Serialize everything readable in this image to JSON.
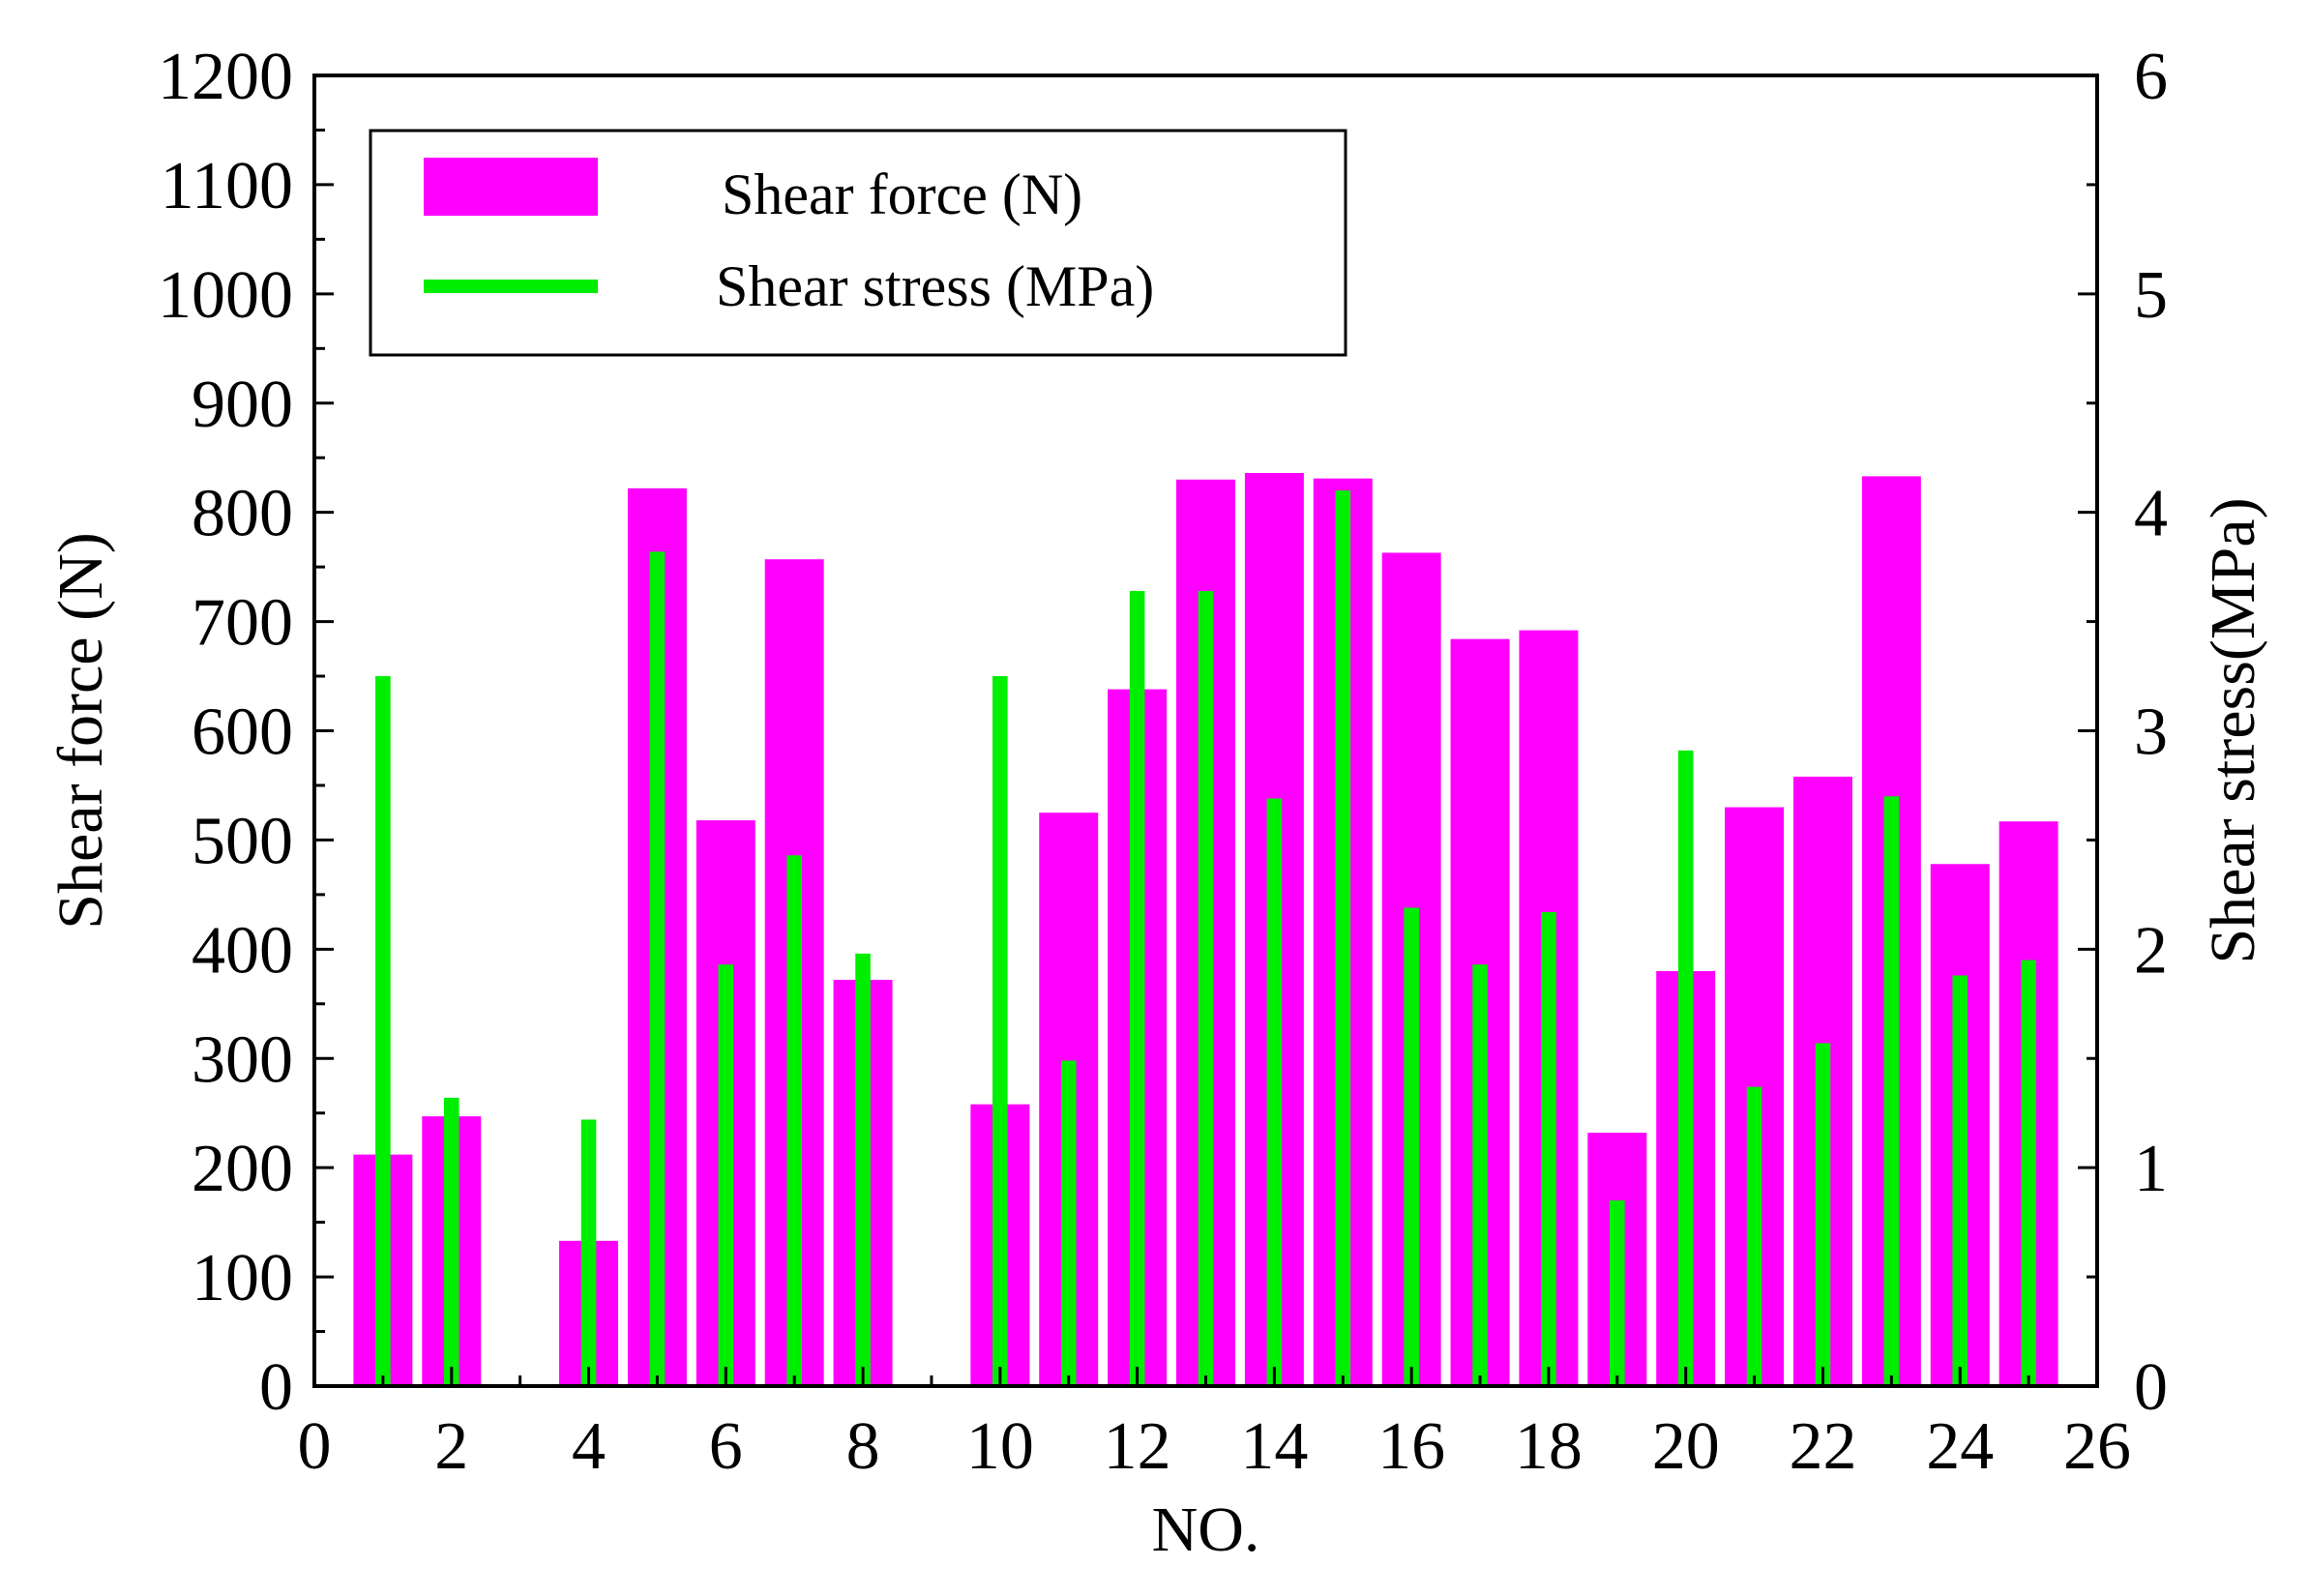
{
  "chart_data": {
    "type": "bar",
    "xlabel": "NO.",
    "ylabel": "Shear force (N)",
    "y2label": "Shear stress(MPa)",
    "xlim": [
      0,
      26
    ],
    "ylim": [
      0,
      1200
    ],
    "y2lim": [
      0,
      6
    ],
    "x_ticks": [
      "0",
      "2",
      "4",
      "6",
      "8",
      "10",
      "12",
      "14",
      "16",
      "18",
      "20",
      "22",
      "24",
      "26"
    ],
    "y_ticks": [
      "0",
      "100",
      "200",
      "300",
      "400",
      "500",
      "600",
      "700",
      "800",
      "900",
      "1000",
      "1100",
      "1200"
    ],
    "y2_ticks": [
      "0",
      "1",
      "2",
      "3",
      "4",
      "5",
      "6"
    ],
    "legend_position": "top-left",
    "colors": {
      "force": "#ff00ff",
      "stress": "#00ee00"
    },
    "series": [
      {
        "name": "Shear force (N)",
        "axis": "left",
        "style": "wide-bar",
        "x": [
          1,
          2,
          4,
          5,
          6,
          7,
          8,
          10,
          11,
          12,
          13,
          14,
          15,
          16,
          17,
          18,
          19,
          20,
          21,
          22,
          23,
          24,
          25
        ],
        "values": [
          212,
          247,
          133,
          822,
          518,
          757,
          372,
          258,
          525,
          638,
          830,
          836,
          831,
          763,
          684,
          692,
          232,
          380,
          530,
          558,
          833,
          478,
          517
        ]
      },
      {
        "name": "Shear stress (MPa)",
        "axis": "right",
        "style": "narrow-bar",
        "x": [
          1,
          2,
          4,
          5,
          6,
          7,
          8,
          10,
          11,
          12,
          13,
          14,
          15,
          16,
          17,
          18,
          19,
          20,
          21,
          22,
          23,
          24,
          25
        ],
        "values": [
          3.25,
          1.32,
          1.22,
          3.82,
          1.93,
          2.43,
          1.98,
          3.25,
          1.49,
          3.64,
          3.64,
          2.69,
          4.1,
          2.19,
          1.93,
          2.17,
          0.85,
          2.91,
          1.37,
          1.57,
          2.7,
          1.88,
          1.95
        ]
      }
    ]
  }
}
